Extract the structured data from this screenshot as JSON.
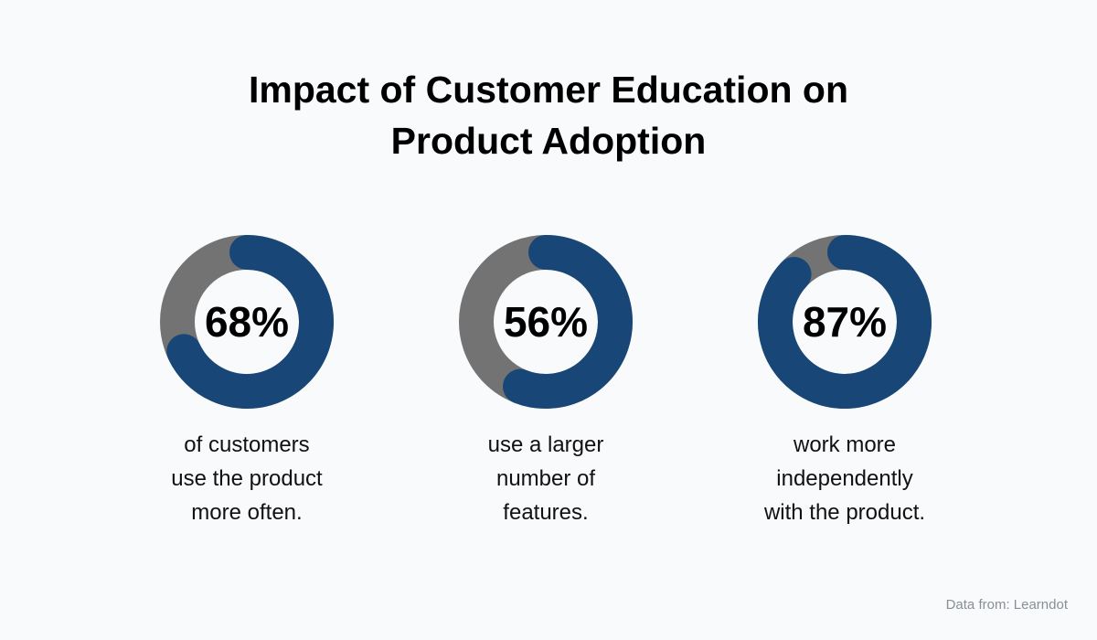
{
  "chart_data": {
    "type": "donut",
    "title_lines": [
      "Impact of Customer Education on",
      "Product Adoption"
    ],
    "colors": {
      "filled": "#174677",
      "remainder": "#737373",
      "background": "#f8fafc"
    },
    "items": [
      {
        "value": 68,
        "label": "68%",
        "caption": [
          "of customers",
          "use the product",
          "more often."
        ]
      },
      {
        "value": 56,
        "label": "56%",
        "caption": [
          "use a larger",
          "number of",
          "features."
        ]
      },
      {
        "value": 87,
        "label": "87%",
        "caption": [
          "work more",
          "independently",
          "with the product."
        ]
      }
    ],
    "source": "Data from: Learndot"
  }
}
